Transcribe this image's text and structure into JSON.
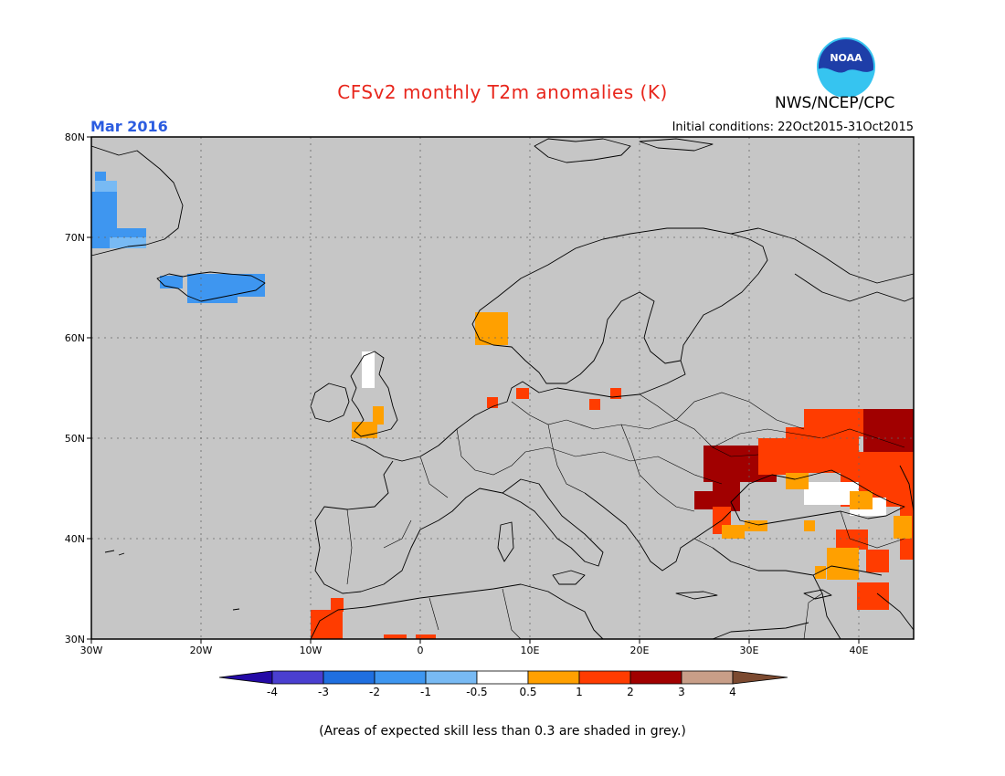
{
  "header": {
    "title": "CFSv2 monthly T2m anomalies (K)",
    "agency": "NWS/NCEP/CPC",
    "logo_text": "NOAA",
    "month": "Mar 2016",
    "initial_conditions": "Initial conditions: 22Oct2015-31Oct2015",
    "title_color": "#e8261c",
    "month_color": "#2b5ce0"
  },
  "map": {
    "region": "Europe",
    "projection": "lat-lon",
    "lon_range": [
      -30,
      45
    ],
    "lat_range": [
      30,
      80
    ],
    "background_color": "#c6c6c6",
    "grid": true,
    "lat_ticks": [
      "80N",
      "70N",
      "60N",
      "50N",
      "40N",
      "30N"
    ],
    "lon_ticks": [
      "30W",
      "20W",
      "10W",
      "0",
      "10E",
      "20E",
      "30E",
      "40E"
    ]
  },
  "colorbar": {
    "labels": [
      "-4",
      "-3",
      "-2",
      "-1",
      "-0.5",
      "0.5",
      "1",
      "2",
      "3",
      "4"
    ],
    "colors": [
      "#240aa6",
      "#4a3fd0",
      "#1f6fe0",
      "#3e96f0",
      "#78baf4",
      "#ffffff",
      "#ffa000",
      "#ff3c00",
      "#a10000",
      "#c89e88",
      "#7c4a30"
    ]
  },
  "footnote": "(Areas of expected skill less than 0.3 are shaded in grey.)"
}
